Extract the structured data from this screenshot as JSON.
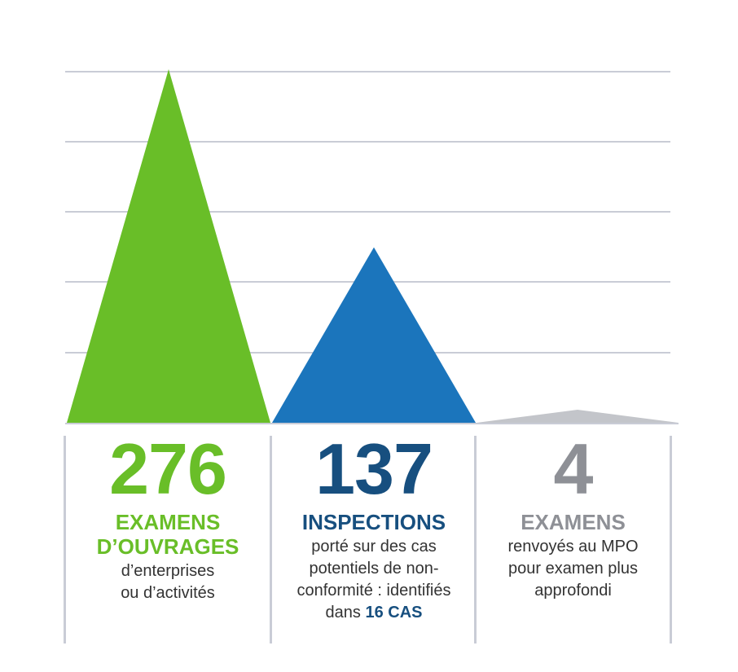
{
  "colors": {
    "green": "#69be28",
    "blue": "#1b75bc",
    "navy": "#174f7f",
    "gray": "#8e9096",
    "light_gray": "#c3c5ca",
    "gridline": "#c9ccd6"
  },
  "chart_data": {
    "type": "area",
    "shape": "triangle",
    "categories": [
      "EXAMENS D’OUVRAGES",
      "INSPECTIONS",
      "EXAMENS"
    ],
    "values": [
      276,
      137,
      4
    ],
    "ylim": [
      0,
      290
    ],
    "grid": true,
    "legend": "none"
  },
  "columns": [
    {
      "value": "276",
      "heading_lines": [
        "EXAMENS",
        "D’OUVRAGES"
      ],
      "desc_lines": [
        "d’enterprises",
        "ou d’activités"
      ]
    },
    {
      "value": "137",
      "heading_lines": [
        "INSPECTIONS"
      ],
      "desc_lines": [
        "porté sur des cas",
        "potentiels de non-",
        "conformité : identifiés"
      ],
      "desc_last_prefix": "dans ",
      "desc_last_bold": "16 CAS"
    },
    {
      "value": "4",
      "heading_lines": [
        "EXAMENS"
      ],
      "desc_lines": [
        "renvoyés au MPO",
        "pour examen plus",
        "approfondi"
      ]
    }
  ]
}
